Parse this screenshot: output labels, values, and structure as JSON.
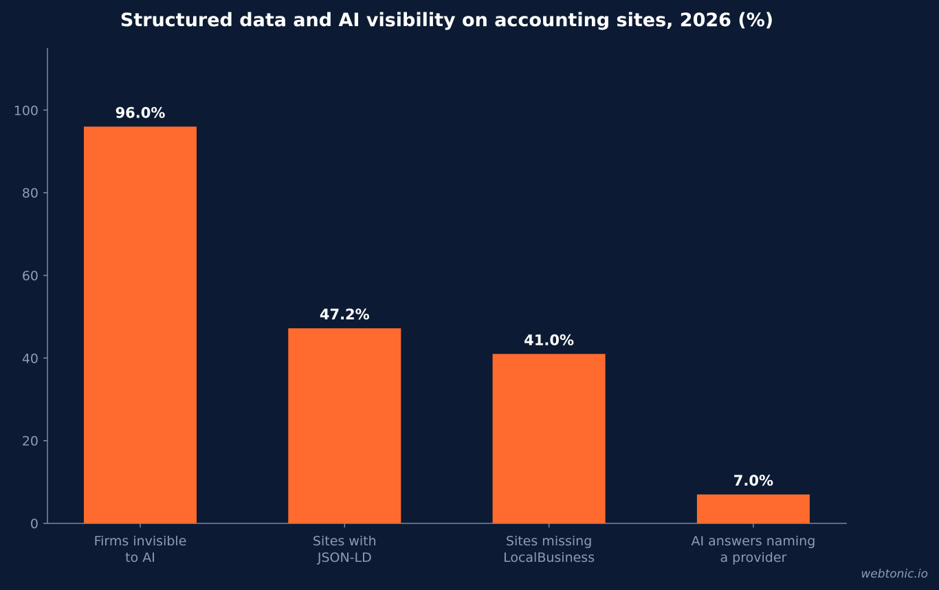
{
  "chart_data": {
    "type": "bar",
    "title": "Structured data and AI visibility on accounting sites, 2026 (%)",
    "categories": [
      [
        "Firms invisible",
        "to AI"
      ],
      [
        "Sites with",
        "JSON-LD"
      ],
      [
        "Sites missing",
        "LocalBusiness"
      ],
      [
        "AI answers naming",
        "a provider"
      ]
    ],
    "values": [
      96.0,
      47.2,
      41.0,
      7.0
    ],
    "value_labels": [
      "96.0%",
      "47.2%",
      "41.0%",
      "7.0%"
    ],
    "y_ticks": [
      0,
      20,
      40,
      60,
      80,
      100
    ],
    "y_tick_labels": [
      "0",
      "20",
      "40",
      "60",
      "80",
      "100"
    ],
    "ylim": [
      0,
      115
    ],
    "xlabel": "",
    "ylabel": "",
    "grid": false,
    "legend": "none"
  },
  "colors": {
    "background": "#0c1b33",
    "bar": "#ff6b2f",
    "axis": "#8d9bb3",
    "tick_text": "#8d9bb3",
    "value_text": "#ffffff",
    "title_text": "#ffffff"
  },
  "watermark": "webtonic.io"
}
